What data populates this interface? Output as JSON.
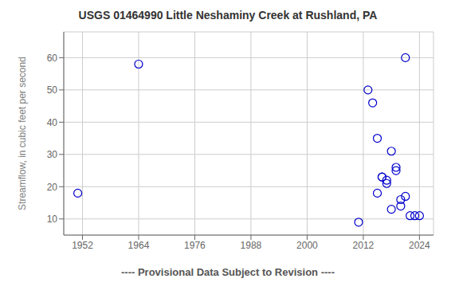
{
  "chart_data": {
    "type": "scatter",
    "title": "USGS 01464990 Little Neshaminy Creek at Rushland, PA",
    "ylabel": "Streamflow, in cubic feet per second",
    "annotation": "---- Provisional Data Subject to Revision ----",
    "x": [
      1951,
      1964,
      2011,
      2013,
      2014,
      2015,
      2015,
      2016,
      2016,
      2017,
      2017,
      2018,
      2018,
      2019,
      2019,
      2020,
      2020,
      2021,
      2021,
      2022,
      2023,
      2024
    ],
    "values": [
      18,
      58,
      9,
      50,
      46,
      35,
      18,
      23,
      23,
      22,
      21,
      13,
      31,
      26,
      25,
      16,
      14,
      17,
      60,
      11,
      11,
      11
    ],
    "color": "#0000cc",
    "marker": "circle",
    "xlim": [
      1948,
      2027
    ],
    "ylim": [
      5,
      68
    ],
    "xticks": [
      1952,
      1964,
      1976,
      1988,
      2000,
      2012,
      2024
    ],
    "yticks": [
      10,
      20,
      30,
      40,
      50,
      60
    ],
    "grid": true
  }
}
